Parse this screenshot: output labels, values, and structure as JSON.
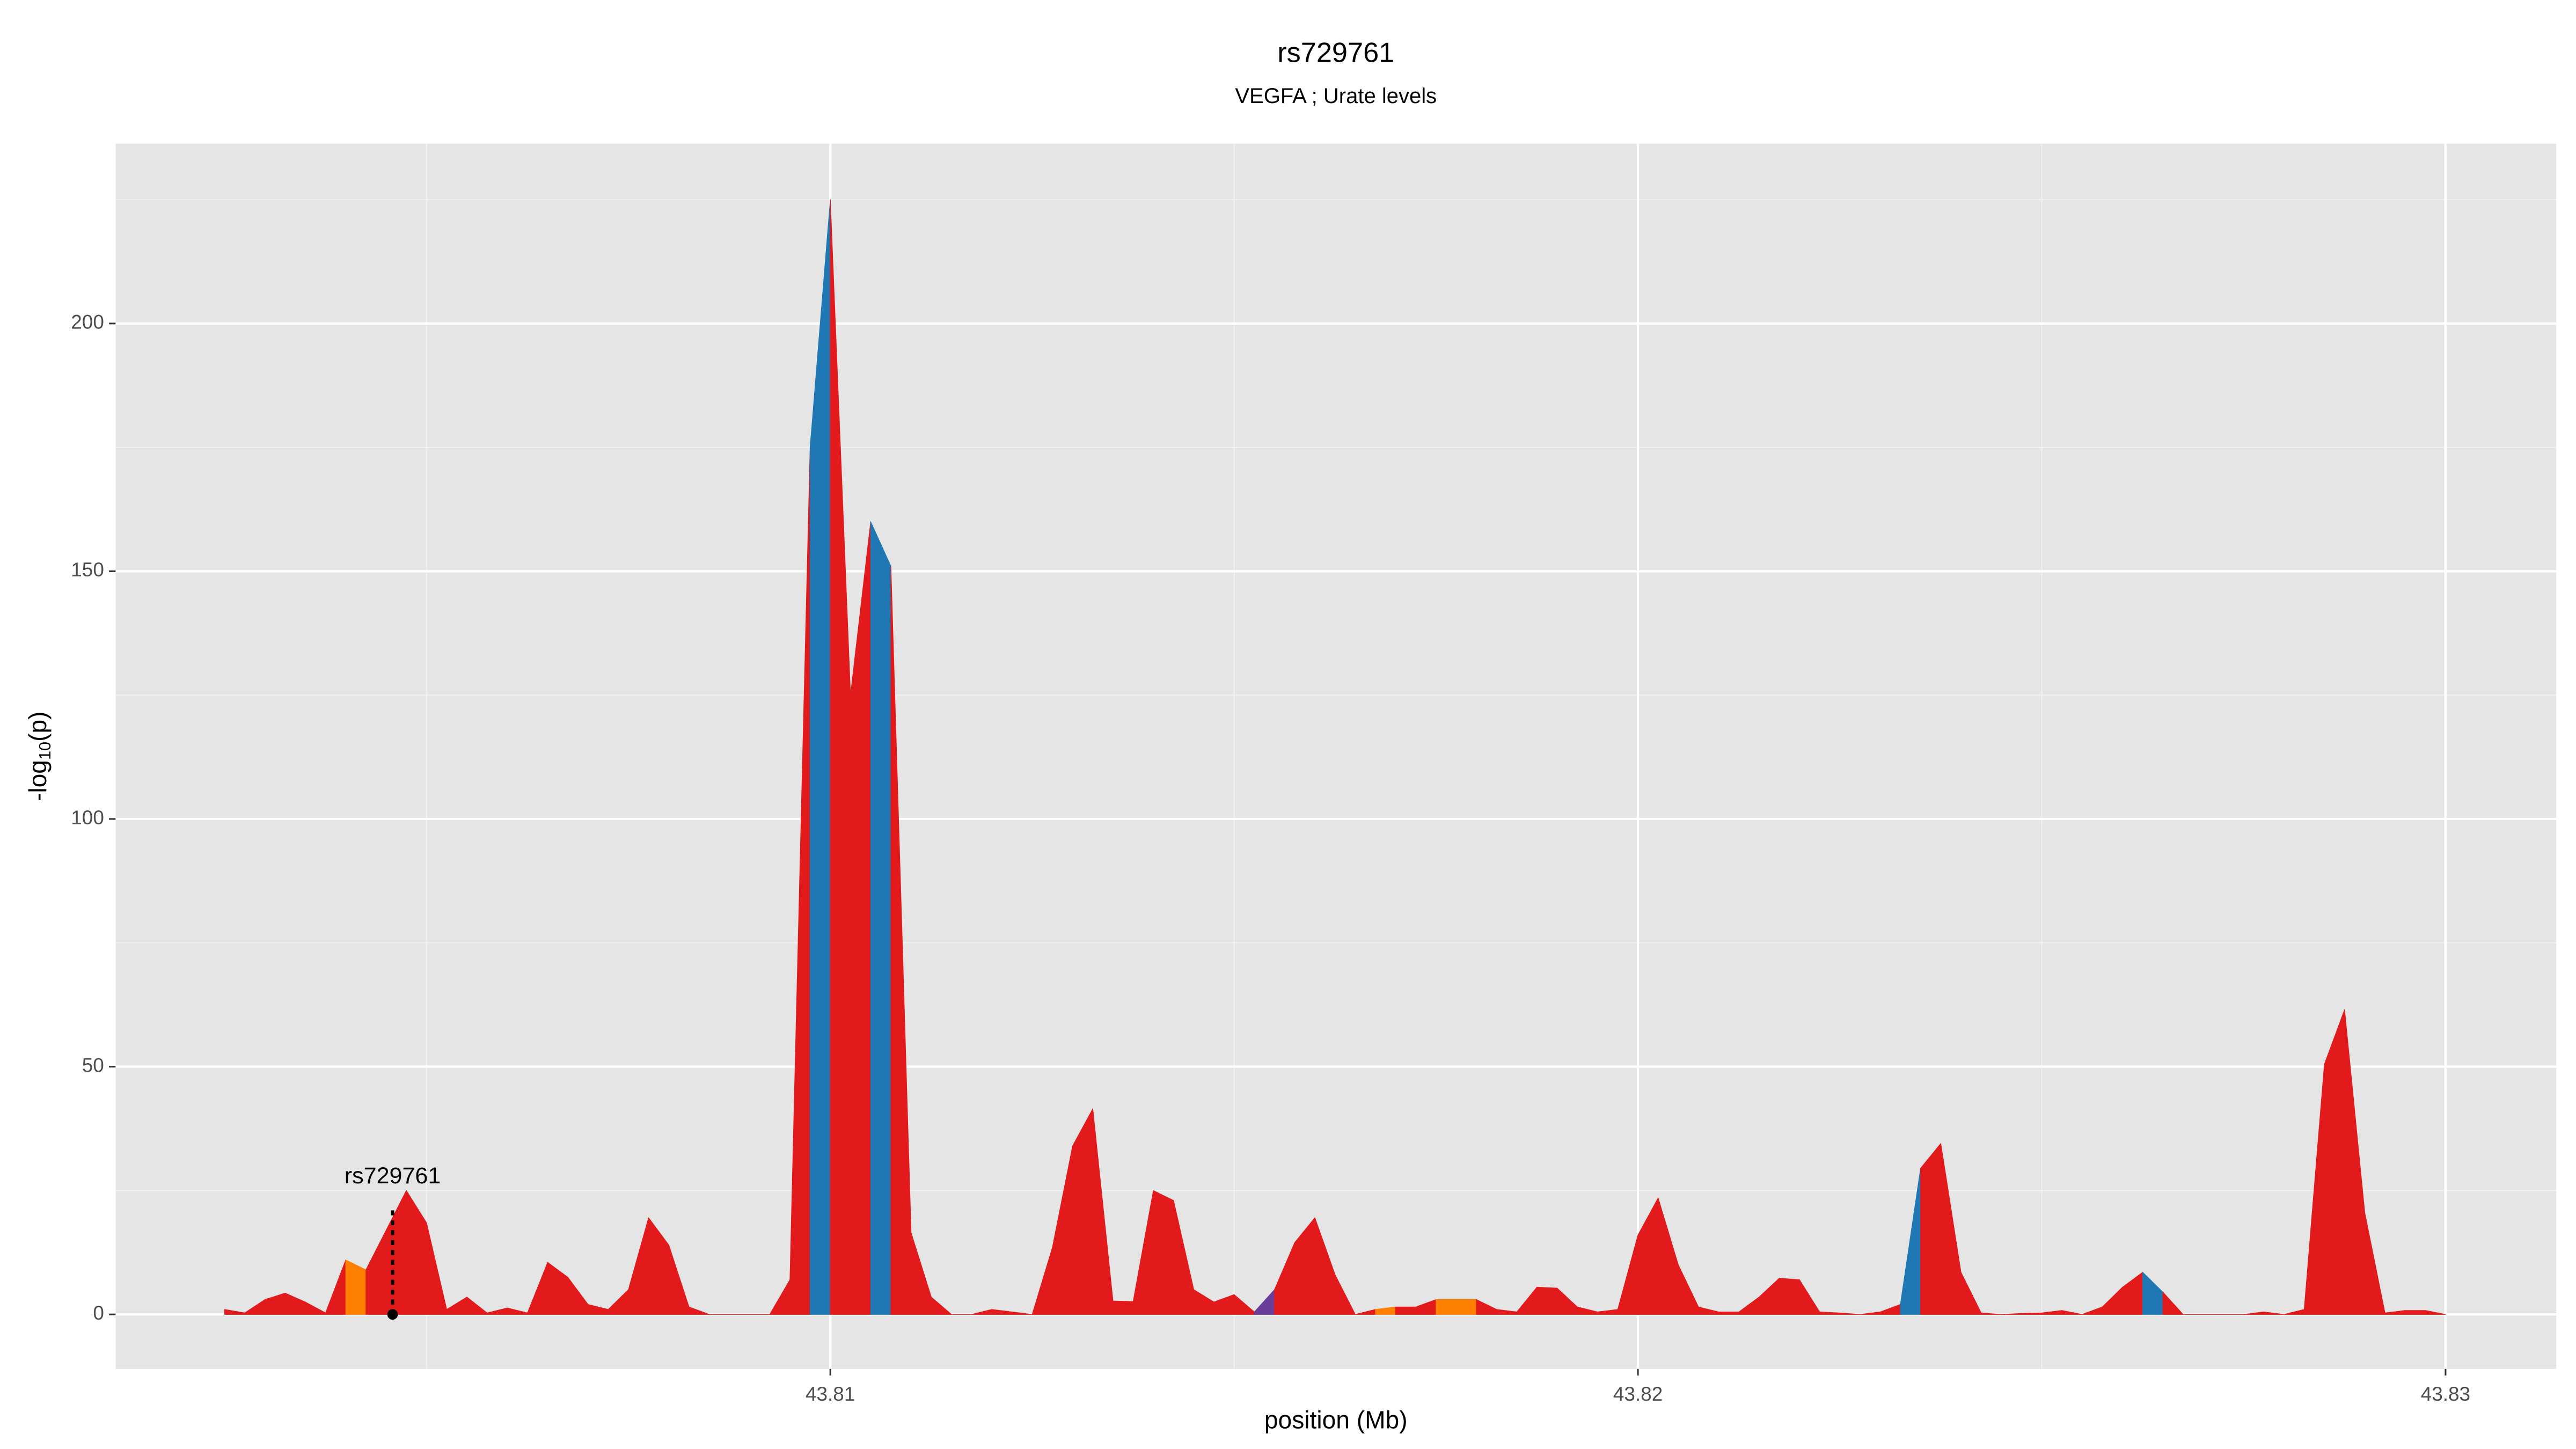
{
  "chart_data": {
    "type": "area",
    "title": "rs729761",
    "subtitle": "VEGFA ; Urate levels",
    "x_label": "position (Mb)",
    "y_label_parts": [
      "-log",
      "10",
      "(p)"
    ],
    "x": [
      43.8025,
      43.80275,
      43.803,
      43.80325,
      43.8035,
      43.80375,
      43.804,
      43.80425,
      43.8045,
      43.80475,
      43.805,
      43.80525,
      43.8055,
      43.80575,
      43.806,
      43.80625,
      43.8065,
      43.80675,
      43.807,
      43.80725,
      43.8075,
      43.80775,
      43.808,
      43.80825,
      43.8085,
      43.80875,
      43.809,
      43.80925,
      43.8095,
      43.80975,
      43.81,
      43.81025,
      43.8105,
      43.81075,
      43.811,
      43.81125,
      43.8115,
      43.81175,
      43.812,
      43.81225,
      43.8125,
      43.81275,
      43.813,
      43.81325,
      43.8135,
      43.81375,
      43.814,
      43.81425,
      43.8145,
      43.81475,
      43.815,
      43.81525,
      43.8155,
      43.81575,
      43.816,
      43.81625,
      43.8165,
      43.81675,
      43.817,
      43.81725,
      43.8175,
      43.81775,
      43.818,
      43.81825,
      43.8185,
      43.81875,
      43.819,
      43.81925,
      43.8195,
      43.81975,
      43.82,
      43.82025,
      43.8205,
      43.82075,
      43.821,
      43.82125,
      43.8215,
      43.82175,
      43.822,
      43.82225,
      43.8225,
      43.82275,
      43.823,
      43.82325,
      43.8235,
      43.82375,
      43.824,
      43.82425,
      43.8245,
      43.82475,
      43.825,
      43.82525,
      43.8255,
      43.82575,
      43.826,
      43.82625,
      43.8265,
      43.82675,
      43.827,
      43.82725,
      43.8275,
      43.82775,
      43.828,
      43.82825,
      43.8285,
      43.82875,
      43.829,
      43.82925,
      43.8295,
      43.82975,
      43.83
    ],
    "values": [
      1,
      0.3,
      3,
      4.3,
      2.5,
      0.3,
      11,
      9,
      17,
      25,
      18.5,
      1,
      3.5,
      0.3,
      1.3,
      0.3,
      10.5,
      7.5,
      2,
      1,
      5,
      19.5,
      14,
      1.5,
      0,
      0,
      0,
      0,
      7,
      175,
      225,
      125,
      160,
      151,
      16.5,
      3.5,
      0,
      0,
      1,
      0.5,
      0,
      13.5,
      34,
      41.5,
      2.7,
      2.6,
      25,
      23,
      5,
      2.5,
      4,
      0.5,
      5,
      14.5,
      19.5,
      8,
      0,
      1,
      1.5,
      1.5,
      3,
      3,
      3,
      1,
      0.5,
      5.5,
      5.3,
      1.5,
      0.5,
      1,
      16,
      23.5,
      10,
      1.5,
      0.5,
      0.5,
      3.5,
      7.3,
      7,
      0.5,
      0.3,
      0,
      0.5,
      2,
      29.5,
      34.5,
      8.5,
      0.3,
      0,
      0.2,
      0.3,
      0.8,
      0,
      1.5,
      5.5,
      8.5,
      4.5,
      0,
      0,
      0,
      0,
      0.5,
      0,
      1,
      50.5,
      61.5,
      20.5,
      0.3,
      0.8,
      0.8,
      0
    ],
    "colors": [
      "#e31a1c",
      "#e31a1c",
      "#e31a1c",
      "#e31a1c",
      "#e31a1c",
      "#e31a1c",
      "#ff7f00",
      "#e31a1c",
      "#e31a1c",
      "#e31a1c",
      "#e31a1c",
      "#e31a1c",
      "#e31a1c",
      "#e31a1c",
      "#e31a1c",
      "#e31a1c",
      "#e31a1c",
      "#e31a1c",
      "#e31a1c",
      "#e31a1c",
      "#e31a1c",
      "#e31a1c",
      "#e31a1c",
      "#e31a1c",
      "#e31a1c",
      "#e31a1c",
      "#e31a1c",
      "#e31a1c",
      "#e31a1c",
      "#1f78b4",
      "#e31a1c",
      "#e31a1c",
      "#1f78b4",
      "#e31a1c",
      "#e31a1c",
      "#e31a1c",
      "#e31a1c",
      "#e31a1c",
      "#e31a1c",
      "#e31a1c",
      "#e31a1c",
      "#e31a1c",
      "#e31a1c",
      "#e31a1c",
      "#e31a1c",
      "#e31a1c",
      "#e31a1c",
      "#e31a1c",
      "#e31a1c",
      "#e31a1c",
      "#e31a1c",
      "#6a3d9a",
      "#e31a1c",
      "#e31a1c",
      "#e31a1c",
      "#e31a1c",
      "#e31a1c",
      "#ff7f00",
      "#e31a1c",
      "#e31a1c",
      "#ff7f00",
      "#ff7f00",
      "#e31a1c",
      "#e31a1c",
      "#e31a1c",
      "#e31a1c",
      "#e31a1c",
      "#e31a1c",
      "#e31a1c",
      "#e31a1c",
      "#e31a1c",
      "#e31a1c",
      "#e31a1c",
      "#e31a1c",
      "#e31a1c",
      "#e31a1c",
      "#e31a1c",
      "#e31a1c",
      "#e31a1c",
      "#e31a1c",
      "#e31a1c",
      "#e31a1c",
      "#e31a1c",
      "#1f78b4",
      "#e31a1c",
      "#e31a1c",
      "#e31a1c",
      "#e31a1c",
      "#e31a1c",
      "#e31a1c",
      "#e31a1c",
      "#e31a1c",
      "#e31a1c",
      "#e31a1c",
      "#e31a1c",
      "#1f78b4",
      "#e31a1c",
      "#e31a1c",
      "#e31a1c",
      "#e31a1c",
      "#e31a1c",
      "#e31a1c",
      "#e31a1c",
      "#e31a1c",
      "#e31a1c",
      "#e31a1c",
      "#e31a1c",
      "#e31a1c",
      "#e31a1c",
      "#e31a1c",
      "#e31a1c"
    ],
    "annotation": {
      "text": "rs729761",
      "x": 43.80458,
      "y": 0
    },
    "xlim": [
      43.80115,
      43.83137
    ],
    "ylim": [
      -11,
      236.3
    ],
    "xticks": [
      43.81,
      43.82,
      43.83
    ],
    "yticks": [
      0,
      50,
      100,
      150,
      200
    ],
    "grid": true,
    "minor_grid": true
  }
}
